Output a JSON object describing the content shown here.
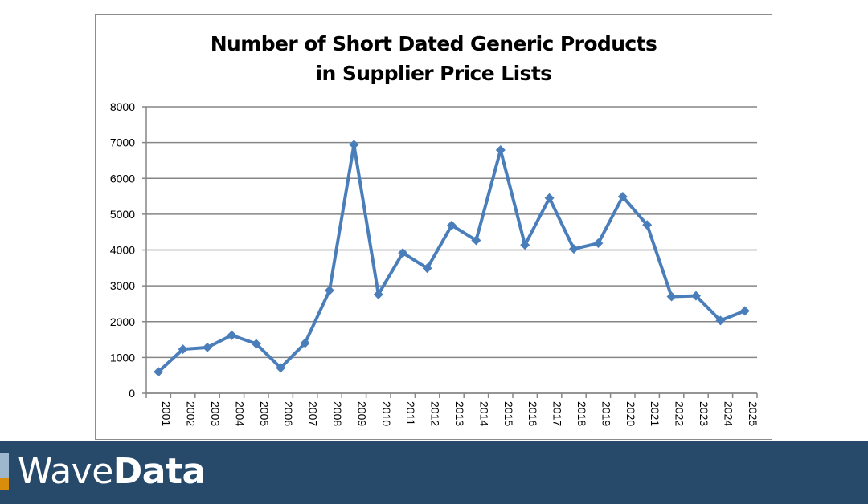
{
  "chart_data": {
    "type": "line",
    "title": "Number of Short Dated Generic Products in Supplier Price Lists",
    "title_lines": [
      "Number of Short Dated Generic Products",
      "in Supplier Price Lists"
    ],
    "xlabel": "",
    "ylabel": "",
    "categories": [
      "2001",
      "2002",
      "2003",
      "2004",
      "2005",
      "2006",
      "2007",
      "2008",
      "2009",
      "2010",
      "2011",
      "2012",
      "2013",
      "2014",
      "2015",
      "2016",
      "2017",
      "2018",
      "2019",
      "2020",
      "2021",
      "2022",
      "2023",
      "2024",
      "2025"
    ],
    "values": [
      600,
      1230,
      1280,
      1620,
      1380,
      710,
      1400,
      2870,
      6940,
      2760,
      3920,
      3490,
      4690,
      4270,
      6790,
      4140,
      5450,
      4030,
      4190,
      5490,
      4700,
      2700,
      2720,
      2030,
      2300
    ],
    "ylim": [
      0,
      8000
    ],
    "yticks": [
      0,
      1000,
      2000,
      3000,
      4000,
      5000,
      6000,
      7000,
      8000
    ],
    "grid": true,
    "legend": "none",
    "marker": "diamond",
    "line_color": "#4a7ebb"
  },
  "footer": {
    "brand_light": "Wave",
    "brand_bold": "Data",
    "background": "#274a6b"
  }
}
